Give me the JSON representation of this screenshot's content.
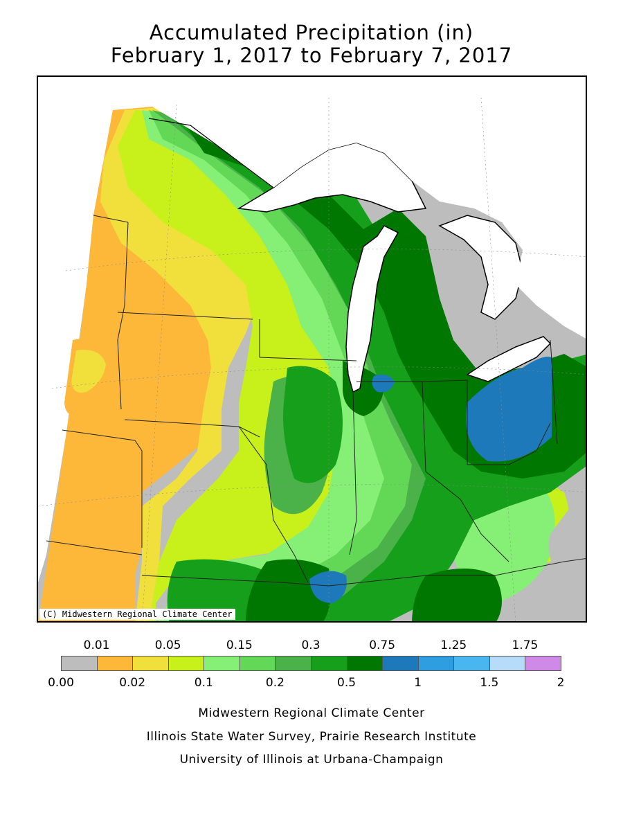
{
  "title": {
    "line1": "Accumulated Precipitation (in)",
    "line2": "February 1, 2017 to February 7, 2017"
  },
  "map": {
    "copyright": "(C) Midwestern Regional Climate Center",
    "background_no_data_color": "#bdbdbd"
  },
  "legend": {
    "colors": [
      "#bdbdbd",
      "#fdb83a",
      "#f1e03b",
      "#c8f01b",
      "#86ef76",
      "#62d856",
      "#4bb24a",
      "#159f1a",
      "#007700",
      "#1d79b9",
      "#2f9ee0",
      "#4ab6ef",
      "#b6dcfa",
      "#cf8ae8"
    ],
    "top_labels": [
      "0.01",
      "0.05",
      "0.15",
      "0.3",
      "0.75",
      "1.25",
      "1.75"
    ],
    "bottom_labels": [
      "0.00",
      "0.02",
      "0.1",
      "0.2",
      "0.5",
      "1",
      "1.5",
      "2"
    ]
  },
  "credits": {
    "line1": "Midwestern Regional Climate Center",
    "line2": "Illinois State Water Survey, Prairie Research Institute",
    "line3": "University of Illinois at Urbana-Champaign"
  }
}
